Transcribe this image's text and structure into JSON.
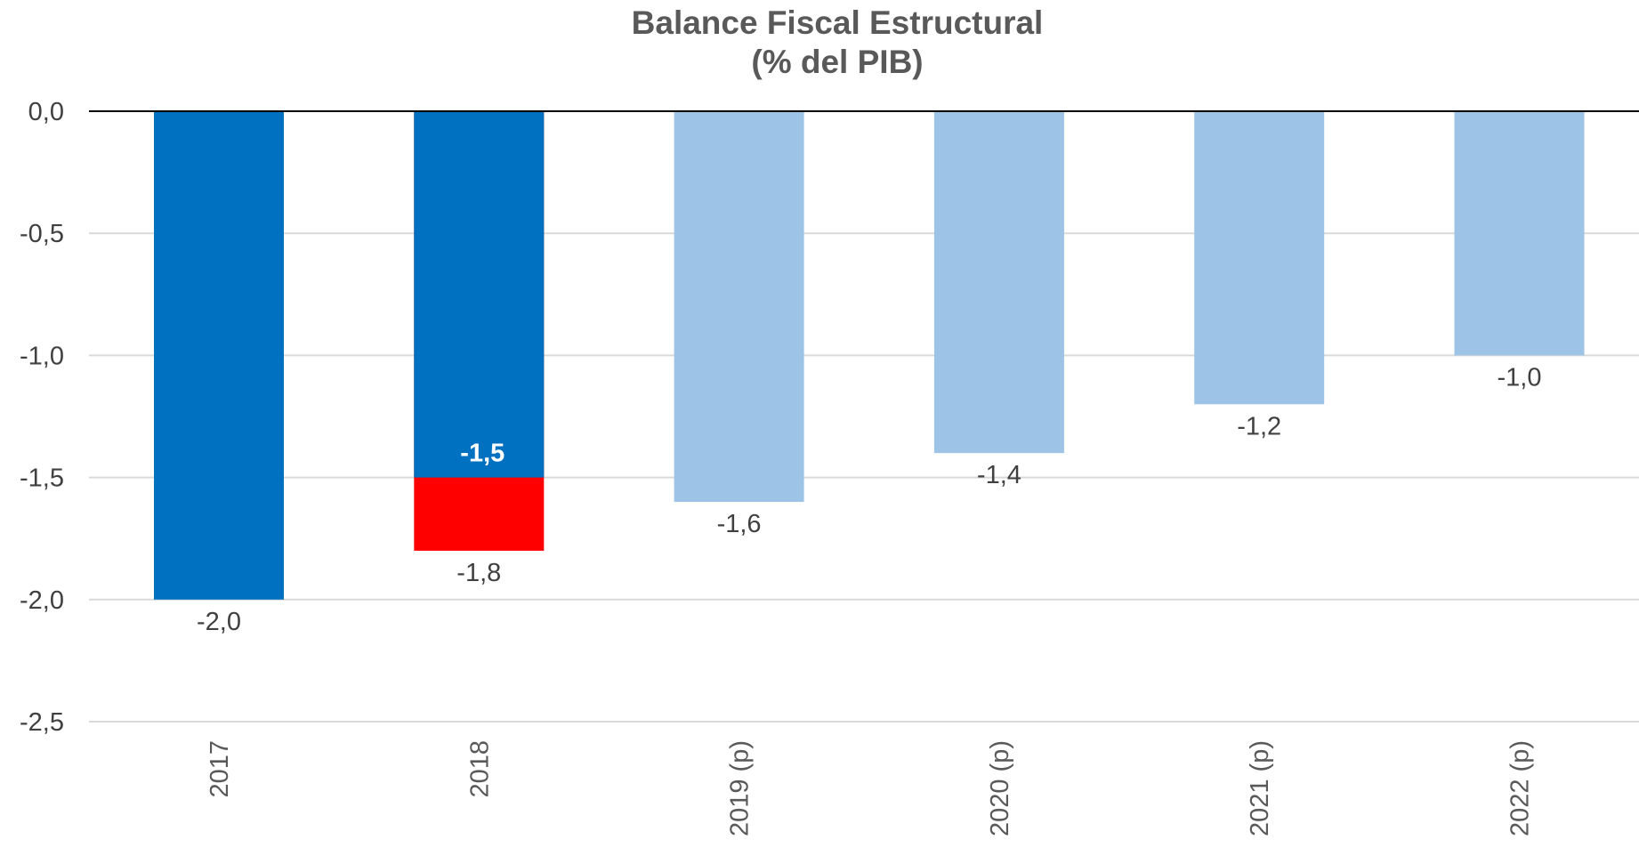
{
  "chart_data": {
    "type": "bar",
    "title": [
      "Balance Fiscal Estructural",
      "(% del PIB)"
    ],
    "categories": [
      "2017",
      "2018",
      "2019 (p)",
      "2020 (p)",
      "2021 (p)",
      "2022 (p)"
    ],
    "series": [
      {
        "values": [
          -2.0,
          -1.8,
          -1.6,
          -1.4,
          -1.2,
          -1.0
        ],
        "labels": [
          "-2,0",
          "-1,8",
          "-1,6",
          "-1,4",
          "-1,2",
          "-1,0"
        ],
        "colors": [
          "#0070C0",
          "#FF0000",
          "#9DC3E6",
          "#9DC3E6",
          "#9DC3E6",
          "#9DC3E6"
        ]
      }
    ],
    "overlay": {
      "category": "2018",
      "value": -1.5,
      "label": "-1,5",
      "color": "#0070C0"
    },
    "ylim": [
      -2.5,
      0.0
    ],
    "yticks": [
      0.0,
      -0.5,
      -1.0,
      -1.5,
      -2.0,
      -2.5
    ],
    "ytick_labels": [
      "0,0",
      "-0,5",
      "-1,0",
      "-1,5",
      "-2,0",
      "-2,5"
    ],
    "grid": true,
    "grid_color": "#D9D9D9",
    "zero_line_color": "#000000"
  }
}
